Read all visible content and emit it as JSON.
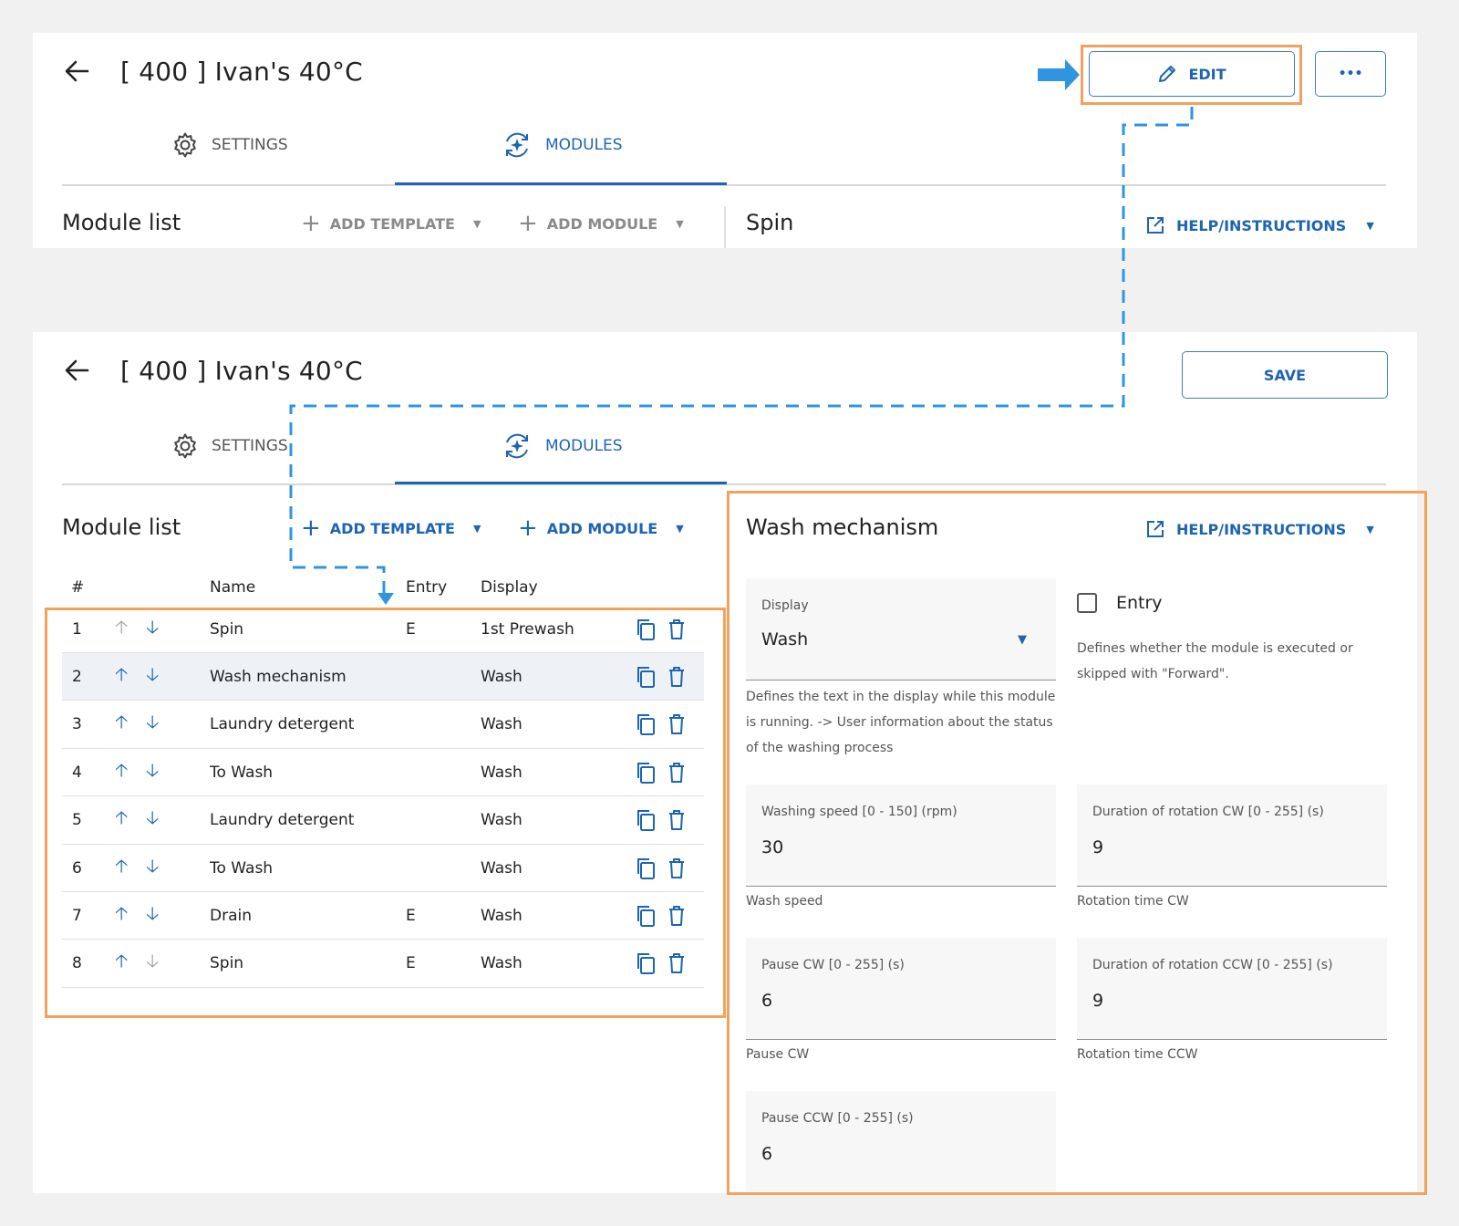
{
  "view_mode": {
    "back_icon": "arrow-left-icon",
    "title": "[ 400 ] Ivan's 40°C",
    "edit_label": "EDIT",
    "more_label": "•••",
    "tabs": [
      {
        "label": "SETTINGS",
        "icon": "gear-icon"
      },
      {
        "label": "MODULES",
        "icon": "modules-icon",
        "active": true
      }
    ],
    "module_list_title": "Module list",
    "add_template_label": "ADD TEMPLATE",
    "add_module_label": "ADD MODULE",
    "detail_title": "Spin",
    "help_label": "HELP/INSTRUCTIONS"
  },
  "edit_mode": {
    "back_icon": "arrow-left-icon",
    "title": "[ 400 ] Ivan's 40°C",
    "save_label": "SAVE",
    "tabs": [
      {
        "label": "SETTINGS",
        "icon": "gear-icon"
      },
      {
        "label": "MODULES",
        "icon": "modules-icon",
        "active": true
      }
    ],
    "module_list_title": "Module list",
    "add_template_label": "ADD TEMPLATE",
    "add_module_label": "ADD MODULE",
    "table": {
      "headers": {
        "number": "#",
        "name": "Name",
        "entry": "Entry",
        "display": "Display"
      },
      "rows": [
        {
          "num": "1",
          "name": "Spin",
          "entry": "E",
          "display": "1st Prewash",
          "up_enabled": false,
          "down_enabled": true
        },
        {
          "num": "2",
          "name": "Wash mechanism",
          "entry": "",
          "display": "Wash",
          "up_enabled": true,
          "down_enabled": true,
          "selected": true
        },
        {
          "num": "3",
          "name": "Laundry detergent",
          "entry": "",
          "display": "Wash",
          "up_enabled": true,
          "down_enabled": true
        },
        {
          "num": "4",
          "name": "To Wash",
          "entry": "",
          "display": "Wash",
          "up_enabled": true,
          "down_enabled": true
        },
        {
          "num": "5",
          "name": "Laundry detergent",
          "entry": "",
          "display": "Wash",
          "up_enabled": true,
          "down_enabled": true
        },
        {
          "num": "6",
          "name": "To Wash",
          "entry": "",
          "display": "Wash",
          "up_enabled": true,
          "down_enabled": true
        },
        {
          "num": "7",
          "name": "Drain",
          "entry": "E",
          "display": "Wash",
          "up_enabled": true,
          "down_enabled": true
        },
        {
          "num": "8",
          "name": "Spin",
          "entry": "E",
          "display": "Wash",
          "up_enabled": true,
          "down_enabled": false
        }
      ]
    },
    "detail": {
      "title": "Wash mechanism",
      "help_label": "HELP/INSTRUCTIONS",
      "display_field": {
        "label": "Display",
        "value": "Wash",
        "hint": "Defines the text in the display while this module is running. -> User information about the status of the washing process"
      },
      "entry_checkbox": {
        "label": "Entry",
        "checked": false,
        "hint": "Defines whether the module is executed or skipped with \"Forward\"."
      },
      "washing_speed": {
        "label": "Washing speed [0 - 150] (rpm)",
        "value": "30",
        "hint": "Wash speed"
      },
      "rotation_cw": {
        "label": "Duration of rotation CW [0 - 255] (s)",
        "value": "9",
        "hint": "Rotation time CW"
      },
      "pause_cw": {
        "label": "Pause CW [0 - 255] (s)",
        "value": "6",
        "hint": "Pause CW"
      },
      "rotation_ccw": {
        "label": "Duration of rotation CCW [0 - 255] (s)",
        "value": "9",
        "hint": "Rotation time CCW"
      },
      "pause_ccw": {
        "label": "Pause CCW [0 - 255] (s)",
        "value": "6"
      }
    }
  },
  "colors": {
    "primary": "#1d65b0",
    "highlight_orange": "#f2a25a",
    "callout_blue": "#2f95e0",
    "background": "#f1f1f1"
  }
}
